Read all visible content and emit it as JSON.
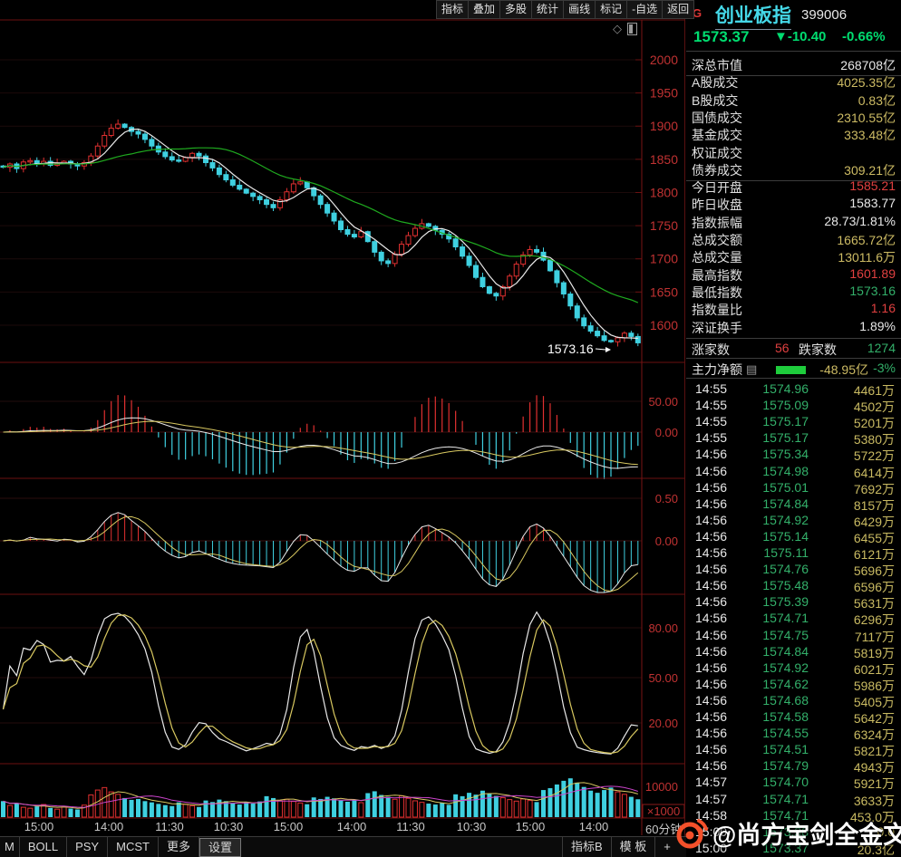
{
  "colors": {
    "up_red": "#e03030",
    "down_cyan": "#3fd0e0",
    "ma_white": "#e8e8e8",
    "ma_green": "#1faa1f",
    "line_yellow": "#d8c860",
    "vol_ma_magenta": "#cc44cc",
    "axis_red": "#c03232",
    "grid_red": "#6b1010",
    "price_green": "#00dd70",
    "value_yellow": "#cdbb64",
    "title_cyan": "#45d8e8",
    "watermark_orange": "#f4502a"
  },
  "topbar": {
    "menu": [
      "指标",
      "叠加",
      "多股",
      "统计",
      "画线",
      "标记",
      "-自选",
      "返回"
    ]
  },
  "header": {
    "flag": "G",
    "title": "创业板指",
    "code": "399006",
    "price": "1573.37",
    "change": "▼-10.40",
    "change_pct": "-0.66%"
  },
  "info_rows": [
    [
      "深总市值",
      "268708亿",
      "w"
    ],
    [
      "A股成交",
      "4025.35亿",
      "y"
    ],
    [
      "B股成交",
      "0.83亿",
      "y"
    ],
    [
      "国债成交",
      "2310.55亿",
      "y"
    ],
    [
      "基金成交",
      "",
      "y"
    ],
    [
      "债券成交",
      "309.21亿",
      "y"
    ],
    [
      "今日开盘",
      "1585.21",
      "r"
    ],
    [
      "昨日收盘",
      "1583.77",
      "w"
    ],
    [
      "指数振幅",
      "28.73/1.81%",
      "w"
    ],
    [
      "总成交额",
      "1665.72亿",
      "y"
    ],
    [
      "总成交量",
      "13011.6万",
      "y"
    ],
    [
      "最高指数",
      "1601.89",
      "r"
    ],
    [
      "最低指数",
      "1573.16",
      "g"
    ],
    [
      "指数量比",
      "1.16",
      "r"
    ],
    [
      "深证换手",
      "1.89%",
      "w"
    ]
  ],
  "info_rows_note": "row 权证成交 has empty value",
  "info_rows_full": [
    [
      "深总市值",
      "268708亿",
      "w"
    ],
    [
      "A股成交",
      "4025.35亿",
      "y"
    ],
    [
      "B股成交",
      "0.83亿",
      "y"
    ],
    [
      "国债成交",
      "2310.55亿",
      "y"
    ],
    [
      "基金成交",
      "333.48亿",
      "y"
    ],
    [
      "权证成交",
      "",
      "y"
    ],
    [
      "债券成交",
      "309.21亿",
      "y"
    ],
    [
      "今日开盘",
      "1585.21",
      "r"
    ],
    [
      "昨日收盘",
      "1583.77",
      "w"
    ],
    [
      "指数振幅",
      "28.73/1.81%",
      "w"
    ],
    [
      "总成交额",
      "1665.72亿",
      "y"
    ],
    [
      "总成交量",
      "13011.6万",
      "y"
    ],
    [
      "最高指数",
      "1601.89",
      "r"
    ],
    [
      "最低指数",
      "1573.16",
      "g"
    ],
    [
      "指数量比",
      "1.16",
      "r"
    ],
    [
      "深证换手",
      "1.89%",
      "w"
    ]
  ],
  "breadth": {
    "up_label": "涨家数",
    "up": "56",
    "down_label": "跌家数",
    "down": "1274"
  },
  "main_force": {
    "label": "主力净额",
    "value": "-48.95亿",
    "pct": "-3%"
  },
  "ticks": [
    [
      "14:55",
      "1574.96",
      "4461万"
    ],
    [
      "14:55",
      "1575.09",
      "4502万"
    ],
    [
      "14:55",
      "1575.17",
      "5201万"
    ],
    [
      "14:55",
      "1575.17",
      "5380万"
    ],
    [
      "14:56",
      "1575.34",
      "5722万"
    ],
    [
      "14:56",
      "1574.98",
      "6414万"
    ],
    [
      "14:56",
      "1575.01",
      "7692万"
    ],
    [
      "14:56",
      "1574.84",
      "8157万"
    ],
    [
      "14:56",
      "1574.92",
      "6429万"
    ],
    [
      "14:56",
      "1575.14",
      "6455万"
    ],
    [
      "14:56",
      "1575.11",
      "6121万"
    ],
    [
      "14:56",
      "1574.76",
      "5696万"
    ],
    [
      "14:56",
      "1575.48",
      "6596万"
    ],
    [
      "14:56",
      "1575.39",
      "5631万"
    ],
    [
      "14:56",
      "1574.71",
      "6296万"
    ],
    [
      "14:56",
      "1574.75",
      "7117万"
    ],
    [
      "14:56",
      "1574.84",
      "5819万"
    ],
    [
      "14:56",
      "1574.92",
      "6021万"
    ],
    [
      "14:56",
      "1574.62",
      "5986万"
    ],
    [
      "14:56",
      "1574.68",
      "5405万"
    ],
    [
      "14:56",
      "1574.58",
      "5642万"
    ],
    [
      "14:56",
      "1574.55",
      "6324万"
    ],
    [
      "14:56",
      "1574.51",
      "5821万"
    ],
    [
      "14:56",
      "1574.79",
      "4943万"
    ],
    [
      "14:57",
      "1574.70",
      "5921万"
    ],
    [
      "14:57",
      "1574.71",
      "3633万"
    ],
    [
      "14:58",
      "1574.71",
      "453.0万"
    ],
    [
      "15:00",
      "1573.38",
      "0.0"
    ],
    [
      "15:00",
      "1573.37",
      "20.3亿"
    ]
  ],
  "bottom": {
    "left_menu": [
      "M",
      "BOLL",
      "PSY",
      "MCST",
      "更多",
      "设置"
    ],
    "right_menu": [
      "指标B",
      "模 板",
      "+"
    ],
    "period": "60分钟"
  },
  "watermark": "@尚方宝剑全金文",
  "chart_data": {
    "type": "candlestick+indicators",
    "symbol": "创业板指 399006",
    "period": "60分钟",
    "y_axis_ticks": [
      2000,
      1950,
      1900,
      1850,
      1800,
      1750,
      1700,
      1650,
      1600
    ],
    "macd_ticks": [
      "50.00",
      "0.00"
    ],
    "osc_ticks": [
      "0.50",
      "0.00"
    ],
    "kdj_ticks": [
      "80.00",
      "50.00",
      "20.00"
    ],
    "vol_ticks": [
      "10000",
      "×1000"
    ],
    "x_axis_labels": [
      "15:00",
      "14:00",
      "11:30",
      "10:30",
      "15:00",
      "14:00",
      "11:30",
      "10:30",
      "15:00",
      "14:00"
    ],
    "low_annotation": "1573.16",
    "closes": [
      1838,
      1843,
      1836,
      1846,
      1848,
      1843,
      1847,
      1841,
      1844,
      1847,
      1843,
      1840,
      1845,
      1855,
      1870,
      1886,
      1897,
      1903,
      1898,
      1892,
      1888,
      1880,
      1870,
      1861,
      1854,
      1849,
      1847,
      1853,
      1859,
      1855,
      1845,
      1837,
      1827,
      1819,
      1811,
      1805,
      1799,
      1794,
      1789,
      1782,
      1777,
      1789,
      1801,
      1813,
      1816,
      1807,
      1795,
      1782,
      1769,
      1757,
      1744,
      1737,
      1733,
      1741,
      1726,
      1710,
      1697,
      1693,
      1707,
      1722,
      1735,
      1746,
      1753,
      1749,
      1743,
      1737,
      1730,
      1718,
      1704,
      1690,
      1672,
      1658,
      1648,
      1644,
      1658,
      1674,
      1692,
      1706,
      1714,
      1710,
      1698,
      1682,
      1664,
      1647,
      1629,
      1611,
      1599,
      1591,
      1584,
      1577,
      1575,
      1581,
      1588,
      1583,
      1573.4
    ],
    "volumes": [
      5200,
      3800,
      4600,
      3200,
      2900,
      3500,
      4100,
      3000,
      2600,
      3300,
      2800,
      2500,
      3900,
      7200,
      8800,
      9600,
      8200,
      7400,
      6200,
      5600,
      5900,
      5200,
      4800,
      4300,
      3900,
      3600,
      4800,
      4200,
      3700,
      3300,
      5400,
      4900,
      5700,
      5200,
      4600,
      4100,
      4900,
      4400,
      5100,
      6800,
      6200,
      5300,
      5800,
      5100,
      4600,
      4200,
      6400,
      5900,
      6600,
      6100,
      5400,
      5000,
      5600,
      4700,
      7800,
      8400,
      7200,
      6600,
      5800,
      6900,
      6100,
      5300,
      4800,
      4400,
      4100,
      4600,
      4000,
      7400,
      6800,
      7900,
      7300,
      8600,
      7700,
      6900,
      6300,
      5700,
      5200,
      5900,
      5400,
      4900,
      8800,
      9400,
      10600,
      11800,
      12600,
      11200,
      9800,
      8600,
      7900,
      8800,
      9600,
      8200,
      7400,
      6600,
      5800
    ]
  }
}
